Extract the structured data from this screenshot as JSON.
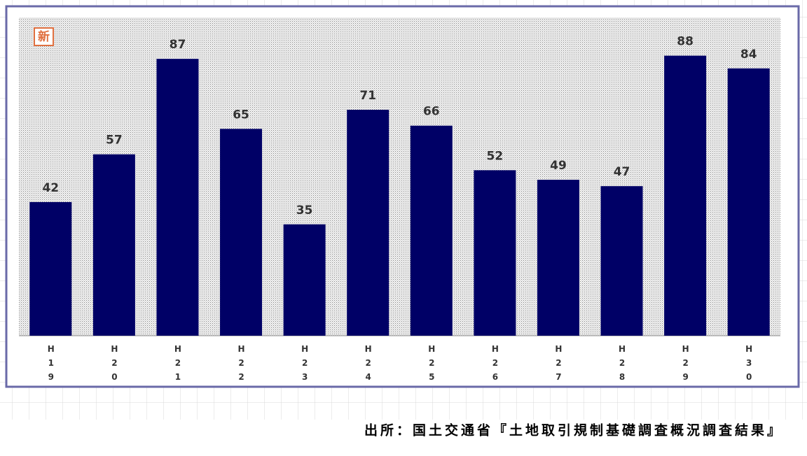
{
  "chart_data": {
    "type": "bar",
    "badge": "新",
    "categories": [
      "H19",
      "H20",
      "H21",
      "H22",
      "H23",
      "H24",
      "H25",
      "H26",
      "H27",
      "H28",
      "H29",
      "H30"
    ],
    "values": [
      42,
      57,
      87,
      65,
      35,
      71,
      66,
      52,
      49,
      47,
      88,
      84
    ],
    "color": "#000066",
    "ylim": [
      0,
      100
    ],
    "source": "出所：国土交通省『土地取引規制基礎調査概況調査結果』"
  }
}
